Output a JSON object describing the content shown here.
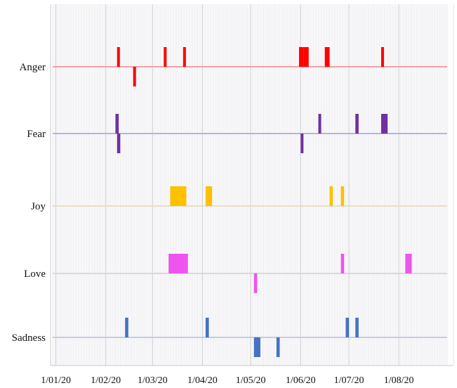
{
  "chart_data": {
    "type": "bar",
    "subtype": "event-timeline (bars above and below each category baseline)",
    "title": "",
    "xlabel": "",
    "ylabel": "",
    "x_axis": {
      "type": "date",
      "tick_labels": [
        "1/01/20",
        "1/02/20",
        "1/03/20",
        "1/04/20",
        "1/05/20",
        "1/06/20",
        "1/07/20",
        "1/08/20"
      ],
      "tick_dates": [
        "2020-01-01",
        "2020-02-01",
        "2020-03-01",
        "2020-04-01",
        "2020-05-01",
        "2020-06-01",
        "2020-07-01",
        "2020-08-01"
      ],
      "range": [
        "2019-12-30",
        "2020-08-31"
      ],
      "minor_gridlines": "daily",
      "major_gridlines": "monthly"
    },
    "grid": true,
    "legend": "none",
    "categories": [
      "Anger",
      "Fear",
      "Joy",
      "Love",
      "Sadness"
    ],
    "series": [
      {
        "name": "Anger",
        "color": "#ff0000",
        "baseline_color": "#f4a3a3",
        "events": [
          {
            "start": "2020-02-08",
            "end": "2020-02-09",
            "value": 1
          },
          {
            "start": "2020-02-18",
            "end": "2020-02-19",
            "value": -1
          },
          {
            "start": "2020-03-08",
            "end": "2020-03-09",
            "value": 1
          },
          {
            "start": "2020-03-20",
            "end": "2020-03-21",
            "value": 1
          },
          {
            "start": "2020-05-31",
            "end": "2020-06-03",
            "value": 1
          },
          {
            "start": "2020-06-03",
            "end": "2020-06-06",
            "value": 1
          },
          {
            "start": "2020-06-16",
            "end": "2020-06-19",
            "value": 1
          },
          {
            "start": "2020-07-21",
            "end": "2020-07-22",
            "value": 1
          }
        ]
      },
      {
        "name": "Fear",
        "color": "#7030a0",
        "baseline_color": "#b9b3dc",
        "events": [
          {
            "start": "2020-02-07",
            "end": "2020-02-09",
            "value": 1
          },
          {
            "start": "2020-02-08",
            "end": "2020-02-10",
            "value": -1
          },
          {
            "start": "2020-06-01",
            "end": "2020-06-02",
            "value": -1
          },
          {
            "start": "2020-06-12",
            "end": "2020-06-13",
            "value": 1
          },
          {
            "start": "2020-07-05",
            "end": "2020-07-07",
            "value": 1
          },
          {
            "start": "2020-07-21",
            "end": "2020-07-25",
            "value": 1
          }
        ]
      },
      {
        "name": "Joy",
        "color": "#ffc000",
        "baseline_color": "#e8dfc0",
        "events": [
          {
            "start": "2020-03-12",
            "end": "2020-03-22",
            "value": 1
          },
          {
            "start": "2020-04-03",
            "end": "2020-04-07",
            "value": 1
          },
          {
            "start": "2020-06-19",
            "end": "2020-06-21",
            "value": 1
          },
          {
            "start": "2020-06-26",
            "end": "2020-06-28",
            "value": 1
          }
        ]
      },
      {
        "name": "Love",
        "color": "#ee55ee",
        "baseline_color": "#d8d8e0",
        "events": [
          {
            "start": "2020-03-11",
            "end": "2020-03-23",
            "value": 1
          },
          {
            "start": "2020-05-03",
            "end": "2020-05-05",
            "value": -1
          },
          {
            "start": "2020-06-26",
            "end": "2020-06-28",
            "value": 1
          },
          {
            "start": "2020-08-05",
            "end": "2020-08-09",
            "value": 1
          }
        ]
      },
      {
        "name": "Sadness",
        "color": "#4472c4",
        "baseline_color": "#c8cce0",
        "events": [
          {
            "start": "2020-02-13",
            "end": "2020-02-15",
            "value": 1
          },
          {
            "start": "2020-04-03",
            "end": "2020-04-05",
            "value": 1
          },
          {
            "start": "2020-05-03",
            "end": "2020-05-07",
            "value": -1
          },
          {
            "start": "2020-05-17",
            "end": "2020-05-19",
            "value": -1
          },
          {
            "start": "2020-06-29",
            "end": "2020-07-01",
            "value": 1
          },
          {
            "start": "2020-07-05",
            "end": "2020-07-07",
            "value": 1
          }
        ]
      }
    ]
  }
}
